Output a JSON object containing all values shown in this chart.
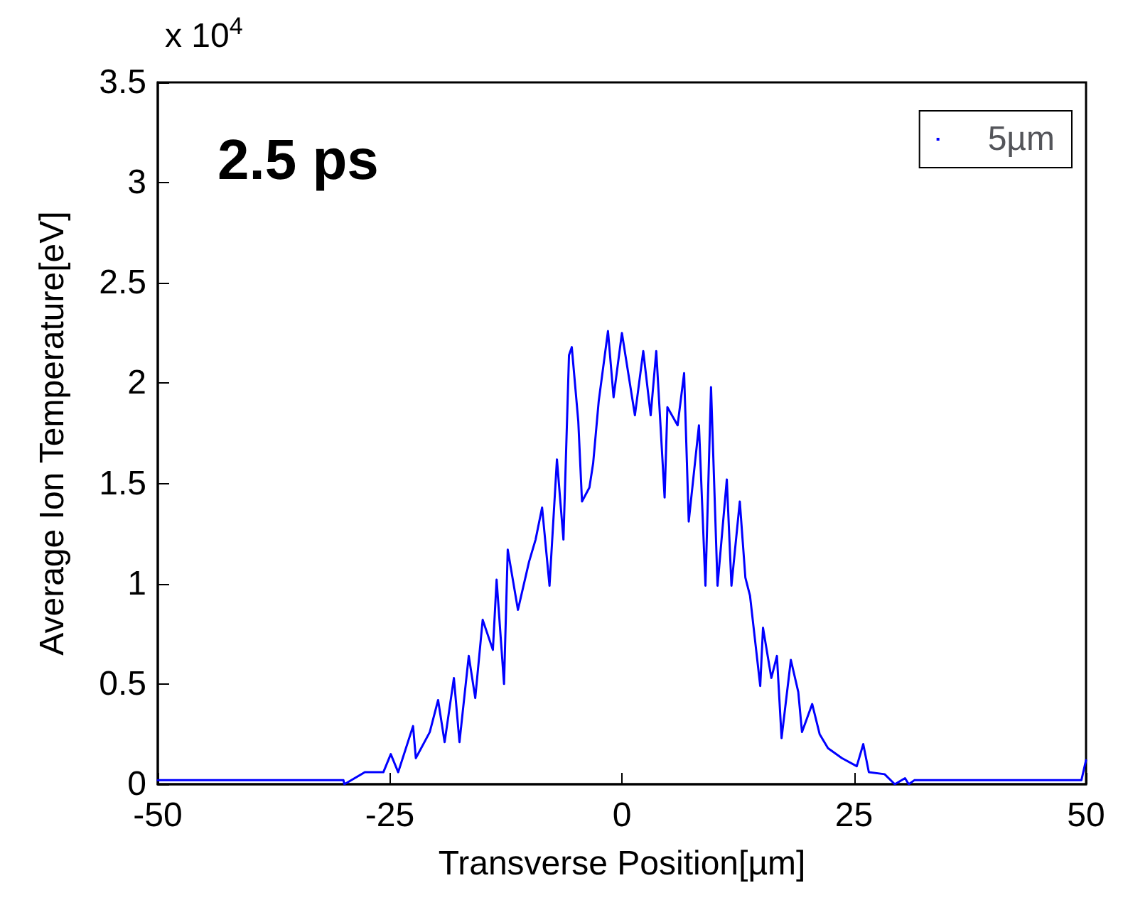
{
  "chart_data": {
    "type": "line",
    "xlabel": "Transverse Position[µm]",
    "ylabel": "Average Ion Temperature[eV]",
    "annotations": [
      "2.5 ps",
      "x 10$^{4}$"
    ],
    "x": [
      -50,
      -30,
      -29.9,
      -27.7,
      -25.7,
      -24.9,
      -24.1,
      -22.5,
      -22.2,
      -20.7,
      -19.8,
      -19.1,
      -18.1,
      -17.5,
      -16.5,
      -15.8,
      -15.0,
      -13.9,
      -13.5,
      -12.7,
      -12.3,
      -11.2,
      -10.0,
      -9.3,
      -8.6,
      -7.8,
      -7.0,
      -6.3,
      -5.7,
      -5.4,
      -4.7,
      -4.3,
      -3.5,
      -3.1,
      -2.5,
      -1.5,
      -0.9,
      0,
      1.4,
      2.3,
      3.1,
      3.7,
      4.6,
      4.9,
      6.0,
      6.7,
      7.2,
      8.3,
      9.0,
      9.6,
      10.3,
      11.3,
      11.8,
      12.7,
      13.3,
      13.8,
      14.9,
      15.2,
      16.1,
      16.7,
      17.2,
      18.2,
      19.0,
      19.4,
      20.5,
      21.3,
      22.2,
      23.7,
      25.3,
      26.0,
      26.6,
      28.3,
      29.4,
      30.5,
      30.9,
      31.5,
      49.5,
      50
    ],
    "series": [
      {
        "name": "5µm",
        "color": "#0000ff",
        "values": [
          0.02,
          0.02,
          0.0,
          0.06,
          0.06,
          0.15,
          0.06,
          0.29,
          0.13,
          0.26,
          0.42,
          0.21,
          0.53,
          0.21,
          0.64,
          0.43,
          0.82,
          0.67,
          1.02,
          0.5,
          1.17,
          0.87,
          1.11,
          1.22,
          1.38,
          0.99,
          1.62,
          1.22,
          2.14,
          2.18,
          1.81,
          1.41,
          1.48,
          1.6,
          1.91,
          2.26,
          1.93,
          2.25,
          1.84,
          2.16,
          1.84,
          2.16,
          1.43,
          1.88,
          1.79,
          2.05,
          1.31,
          1.79,
          0.99,
          1.98,
          0.99,
          1.52,
          0.99,
          1.41,
          1.03,
          0.94,
          0.49,
          0.78,
          0.53,
          0.64,
          0.23,
          0.62,
          0.46,
          0.26,
          0.4,
          0.25,
          0.18,
          0.13,
          0.09,
          0.2,
          0.06,
          0.05,
          0.0,
          0.03,
          0.0,
          0.02,
          0.02,
          0.12
        ]
      }
    ],
    "xlim": [
      -50,
      50
    ],
    "xticks": [
      -50,
      -25,
      0,
      25,
      50
    ],
    "ylim": [
      0,
      3.5
    ],
    "yticks": [
      0,
      0.5,
      1,
      1.5,
      2,
      2.5,
      3,
      3.5
    ],
    "legend": "top right",
    "grid": false,
    "marker": "none",
    "line_style": "solid"
  }
}
